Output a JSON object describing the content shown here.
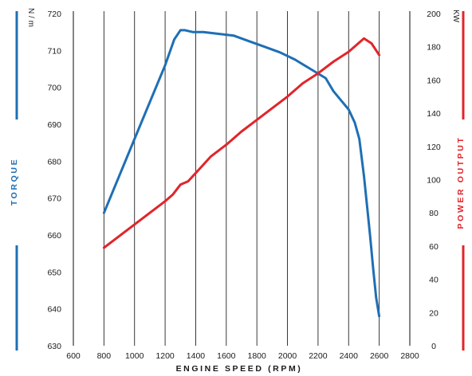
{
  "chart_data": {
    "type": "line",
    "xlabel": "ENGINE SPEED (RPM)",
    "x_ticks": [
      600,
      800,
      1000,
      1200,
      1400,
      1600,
      1800,
      2000,
      2200,
      2400,
      2600,
      2800
    ],
    "xlim": [
      600,
      2800
    ],
    "y_left": {
      "label": "TORQUE",
      "unit": "N / m",
      "ticks": [
        630,
        640,
        650,
        660,
        670,
        680,
        690,
        700,
        710,
        720
      ],
      "ylim": [
        630,
        720
      ]
    },
    "y_right": {
      "label": "POWER OUTPUT",
      "unit": "KW",
      "ticks": [
        0,
        20,
        40,
        60,
        80,
        100,
        120,
        140,
        160,
        180,
        200
      ],
      "ylim": [
        0,
        200
      ]
    },
    "grid": "vertical",
    "series": [
      {
        "axis": "left",
        "color": "#1e6fb5",
        "x": [
          800,
          900,
          1000,
          1100,
          1200,
          1260,
          1300,
          1330,
          1380,
          1450,
          1550,
          1650,
          1750,
          1850,
          1950,
          2050,
          2150,
          2250,
          2300,
          2350,
          2400,
          2440,
          2470,
          2500,
          2520,
          2540,
          2560,
          2580,
          2600
        ],
        "values": [
          666,
          676,
          686,
          696,
          706,
          713,
          715.5,
          715.5,
          715,
          715,
          714.5,
          714,
          712.5,
          711,
          709.5,
          707.5,
          705,
          702.5,
          699,
          696.5,
          694,
          690.5,
          686,
          676,
          668,
          660,
          651,
          643,
          638
        ]
      },
      {
        "axis": "right",
        "color": "#e0252b",
        "x": [
          800,
          900,
          1000,
          1100,
          1200,
          1250,
          1300,
          1350,
          1400,
          1500,
          1600,
          1700,
          1800,
          1900,
          2000,
          2100,
          2200,
          2300,
          2400,
          2450,
          2500,
          2550,
          2600
        ],
        "values": [
          59,
          66,
          73,
          80,
          87,
          91,
          97,
          99,
          104,
          114,
          121,
          129,
          136,
          143,
          150,
          158,
          164,
          171,
          177,
          181,
          185,
          182,
          175
        ]
      }
    ]
  },
  "colors": {
    "torque": "#1e6fb5",
    "power": "#e0252b"
  }
}
